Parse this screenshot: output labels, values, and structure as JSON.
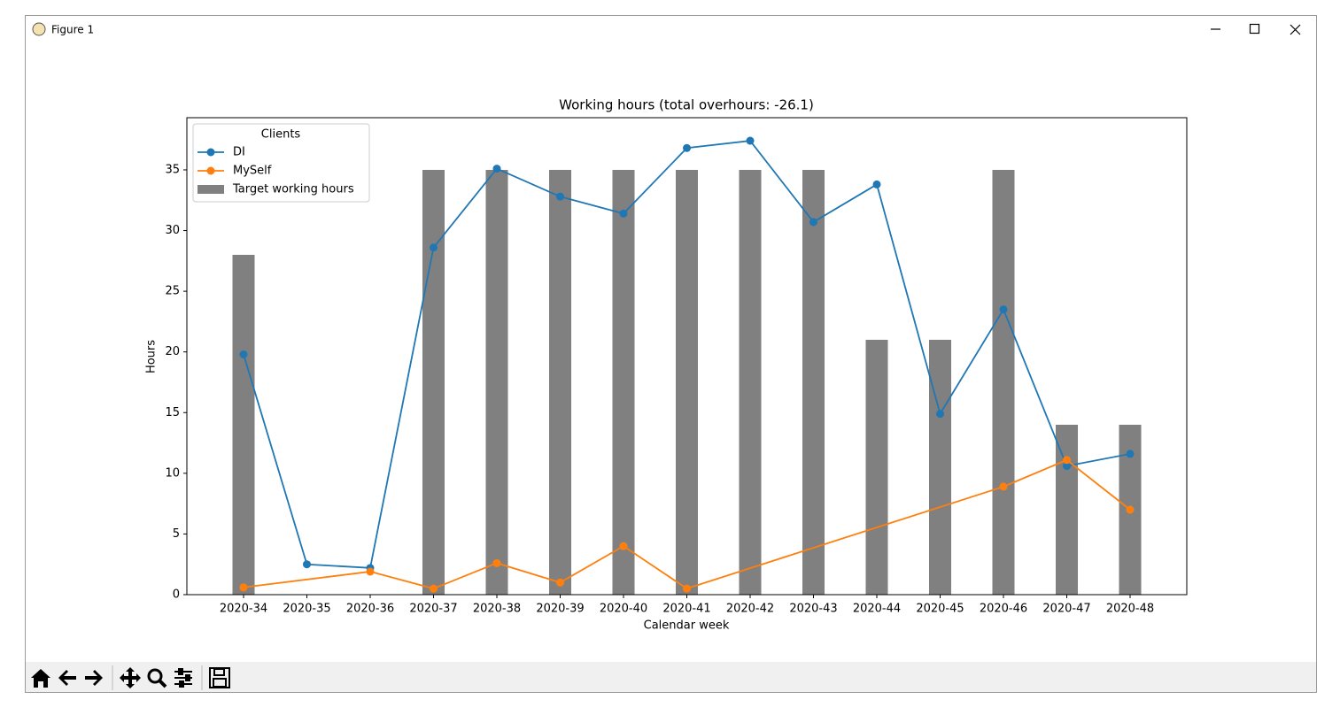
{
  "window": {
    "title": "Figure 1"
  },
  "chart_data": {
    "type": "line",
    "title": "Working hours (total overhours: -26.1)",
    "x_label": "Calendar week",
    "y_label": "Hours",
    "categories": [
      "2020-34",
      "2020-35",
      "2020-36",
      "2020-37",
      "2020-38",
      "2020-39",
      "2020-40",
      "2020-41",
      "2020-42",
      "2020-43",
      "2020-44",
      "2020-45",
      "2020-46",
      "2020-47",
      "2020-48"
    ],
    "ylim": [
      0,
      39.3
    ],
    "yticks": [
      0,
      5,
      10,
      15,
      20,
      25,
      30,
      35
    ],
    "legend_title": "Clients",
    "legend": "upper left",
    "series": [
      {
        "name": "DI",
        "color": "#1f77b4",
        "values": [
          19.8,
          2.5,
          2.2,
          28.6,
          35.1,
          32.8,
          31.4,
          36.8,
          37.4,
          30.7,
          33.8,
          14.9,
          23.5,
          10.6,
          11.6
        ]
      },
      {
        "name": "MySelf",
        "color": "#ff7f0e",
        "x": [
          "2020-34",
          "2020-36",
          "2020-37",
          "2020-38",
          "2020-39",
          "2020-40",
          "2020-41",
          "2020-46",
          "2020-47",
          "2020-48"
        ],
        "values": [
          0.6,
          1.9,
          0.5,
          2.6,
          1.0,
          4.0,
          0.5,
          8.9,
          11.1,
          7.0
        ]
      }
    ],
    "bars": {
      "name": "Target working hours",
      "color": "#808080",
      "values": [
        28,
        0,
        0,
        35,
        35,
        35,
        35,
        35,
        35,
        35,
        21,
        21,
        35,
        14,
        14
      ]
    }
  }
}
